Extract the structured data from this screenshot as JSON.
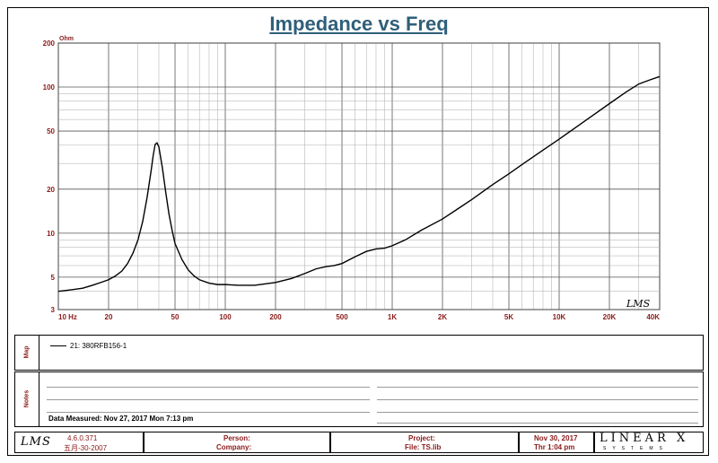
{
  "chart_data": {
    "type": "line",
    "title": "Impedance vs Freq",
    "ylabel": "Ohm",
    "x_scale": "log",
    "y_scale": "log",
    "xlim": [
      10,
      40000
    ],
    "ylim": [
      3,
      200
    ],
    "x_ticks": [
      10,
      20,
      50,
      100,
      200,
      500,
      1000,
      2000,
      5000,
      10000,
      20000,
      40000
    ],
    "x_tick_labels": [
      "10  Hz",
      "20",
      "50",
      "100",
      "200",
      "500",
      "1K",
      "2K",
      "5K",
      "10K",
      "20K",
      "40K"
    ],
    "y_ticks": [
      3,
      5,
      10,
      20,
      50,
      100,
      200
    ],
    "y_tick_labels": [
      "3",
      "5",
      "10",
      "20",
      "50",
      "100",
      "200"
    ],
    "grid": true,
    "series": [
      {
        "name": "21: 380RFB156-1",
        "x": [
          10,
          12,
          14,
          16,
          18,
          20,
          22,
          24,
          26,
          28,
          30,
          32,
          34,
          36,
          37,
          38,
          39,
          40,
          42,
          44,
          46,
          48,
          50,
          55,
          60,
          65,
          70,
          80,
          90,
          100,
          120,
          150,
          200,
          250,
          300,
          350,
          400,
          450,
          500,
          600,
          700,
          800,
          900,
          1000,
          1200,
          1500,
          2000,
          2500,
          3000,
          4000,
          5000,
          6000,
          8000,
          10000,
          12000,
          15000,
          20000,
          25000,
          30000,
          35000,
          40000
        ],
        "y": [
          4.0,
          4.1,
          4.2,
          4.4,
          4.6,
          4.8,
          5.1,
          5.5,
          6.2,
          7.3,
          9.0,
          12.0,
          17.5,
          27.0,
          34.0,
          40.5,
          41.5,
          39.0,
          28.0,
          19.0,
          13.5,
          10.5,
          8.5,
          6.6,
          5.6,
          5.1,
          4.8,
          4.55,
          4.45,
          4.45,
          4.4,
          4.4,
          4.6,
          4.9,
          5.3,
          5.7,
          5.9,
          6.0,
          6.2,
          6.9,
          7.5,
          7.8,
          7.9,
          8.2,
          9.0,
          10.5,
          12.5,
          14.8,
          17.0,
          21.5,
          25.5,
          29.5,
          37.0,
          44.0,
          51.0,
          61.0,
          77.0,
          92.0,
          105.0,
          112.0,
          118.0
        ]
      }
    ]
  },
  "chart_logo": "LMS",
  "panels": {
    "map_label": "Map",
    "notes_label": "Notes",
    "legend_entry": "21: 380RFB156-1",
    "data_measured": "Data Measured: Nov 27, 2017  Mon  7:13 pm"
  },
  "footer": {
    "logo": "LMS",
    "version": "4.6.0.371",
    "build_date": "五月-30-2007",
    "person_label": "Person:",
    "company_label": "Company:",
    "project_label": "Project:",
    "file_label": "File: TS.lib",
    "date": "Nov 30, 2017",
    "time": "Thr  1:04 pm",
    "brand": "LINEAR X",
    "brand_sub": "SYSTEMS"
  }
}
